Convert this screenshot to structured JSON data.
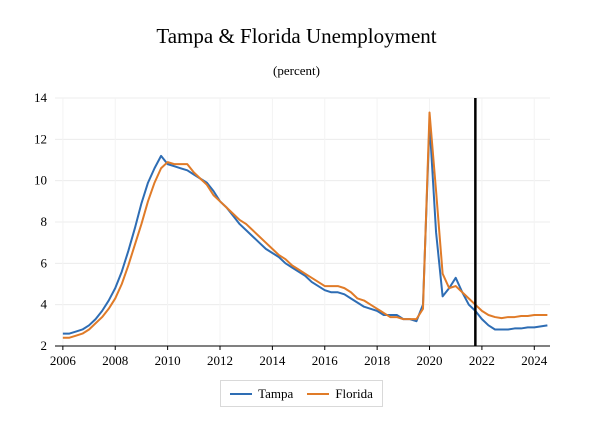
{
  "chart_data": {
    "type": "line",
    "title": "Tampa & Florida Unemployment",
    "subtitle": "(percent)",
    "xlabel": "",
    "ylabel": "",
    "xlim": [
      2005.7,
      2024.6
    ],
    "ylim": [
      2,
      14
    ],
    "yticks": [
      2,
      4,
      6,
      8,
      10,
      12,
      14
    ],
    "xticks": [
      2006,
      2008,
      2010,
      2012,
      2014,
      2016,
      2018,
      2020,
      2022,
      2024
    ],
    "grid": true,
    "legend_position": "bottom-center",
    "vertical_marker_x": 2021.75,
    "series": [
      {
        "name": "Tampa",
        "color": "#2e6db4",
        "x": [
          2006.0,
          2006.25,
          2006.5,
          2006.75,
          2007.0,
          2007.25,
          2007.5,
          2007.75,
          2008.0,
          2008.25,
          2008.5,
          2008.75,
          2009.0,
          2009.25,
          2009.5,
          2009.75,
          2010.0,
          2010.25,
          2010.5,
          2010.75,
          2011.0,
          2011.25,
          2011.5,
          2011.75,
          2012.0,
          2012.25,
          2012.5,
          2012.75,
          2013.0,
          2013.25,
          2013.5,
          2013.75,
          2014.0,
          2014.25,
          2014.5,
          2014.75,
          2015.0,
          2015.25,
          2015.5,
          2015.75,
          2016.0,
          2016.25,
          2016.5,
          2016.75,
          2017.0,
          2017.25,
          2017.5,
          2017.75,
          2018.0,
          2018.25,
          2018.5,
          2018.75,
          2019.0,
          2019.25,
          2019.5,
          2019.75,
          2020.0,
          2020.25,
          2020.5,
          2020.75,
          2021.0,
          2021.25,
          2021.5,
          2021.75,
          2022.0,
          2022.25,
          2022.5,
          2022.75,
          2023.0,
          2023.25,
          2023.5,
          2023.75,
          2024.0,
          2024.25,
          2024.5
        ],
        "y": [
          2.6,
          2.6,
          2.7,
          2.8,
          3.0,
          3.3,
          3.7,
          4.2,
          4.8,
          5.6,
          6.6,
          7.7,
          8.9,
          9.9,
          10.6,
          11.2,
          10.8,
          10.7,
          10.6,
          10.5,
          10.3,
          10.1,
          9.9,
          9.5,
          9.0,
          8.7,
          8.3,
          7.9,
          7.6,
          7.3,
          7.0,
          6.7,
          6.5,
          6.3,
          6.0,
          5.8,
          5.6,
          5.4,
          5.1,
          4.9,
          4.7,
          4.6,
          4.6,
          4.5,
          4.3,
          4.1,
          3.9,
          3.8,
          3.7,
          3.5,
          3.5,
          3.5,
          3.3,
          3.3,
          3.2,
          4.0,
          12.8,
          7.5,
          4.4,
          4.8,
          5.3,
          4.6,
          4.0,
          3.7,
          3.3,
          3.0,
          2.8,
          2.8,
          2.8,
          2.85,
          2.85,
          2.9,
          2.9,
          2.95,
          3.0
        ]
      },
      {
        "name": "Florida",
        "color": "#e07b28",
        "x": [
          2006.0,
          2006.25,
          2006.5,
          2006.75,
          2007.0,
          2007.25,
          2007.5,
          2007.75,
          2008.0,
          2008.25,
          2008.5,
          2008.75,
          2009.0,
          2009.25,
          2009.5,
          2009.75,
          2010.0,
          2010.25,
          2010.5,
          2010.75,
          2011.0,
          2011.25,
          2011.5,
          2011.75,
          2012.0,
          2012.25,
          2012.5,
          2012.75,
          2013.0,
          2013.25,
          2013.5,
          2013.75,
          2014.0,
          2014.25,
          2014.5,
          2014.75,
          2015.0,
          2015.25,
          2015.5,
          2015.75,
          2016.0,
          2016.25,
          2016.5,
          2016.75,
          2017.0,
          2017.25,
          2017.5,
          2017.75,
          2018.0,
          2018.25,
          2018.5,
          2018.75,
          2019.0,
          2019.25,
          2019.5,
          2019.75,
          2020.0,
          2020.25,
          2020.5,
          2020.75,
          2021.0,
          2021.25,
          2021.5,
          2021.75,
          2022.0,
          2022.25,
          2022.5,
          2022.75,
          2023.0,
          2023.25,
          2023.5,
          2023.75,
          2024.0,
          2024.25,
          2024.5
        ],
        "y": [
          2.4,
          2.4,
          2.5,
          2.6,
          2.8,
          3.1,
          3.4,
          3.8,
          4.3,
          5.0,
          5.9,
          6.9,
          7.9,
          9.0,
          9.9,
          10.6,
          10.9,
          10.8,
          10.8,
          10.8,
          10.4,
          10.1,
          9.8,
          9.3,
          9.0,
          8.7,
          8.4,
          8.1,
          7.9,
          7.6,
          7.3,
          7.0,
          6.7,
          6.4,
          6.2,
          5.9,
          5.7,
          5.5,
          5.3,
          5.1,
          4.9,
          4.9,
          4.9,
          4.8,
          4.6,
          4.3,
          4.2,
          4.0,
          3.8,
          3.6,
          3.4,
          3.4,
          3.3,
          3.3,
          3.3,
          3.8,
          13.3,
          9.5,
          5.5,
          4.8,
          4.9,
          4.6,
          4.3,
          4.0,
          3.7,
          3.5,
          3.4,
          3.35,
          3.4,
          3.4,
          3.45,
          3.45,
          3.5,
          3.5,
          3.5
        ]
      }
    ]
  }
}
